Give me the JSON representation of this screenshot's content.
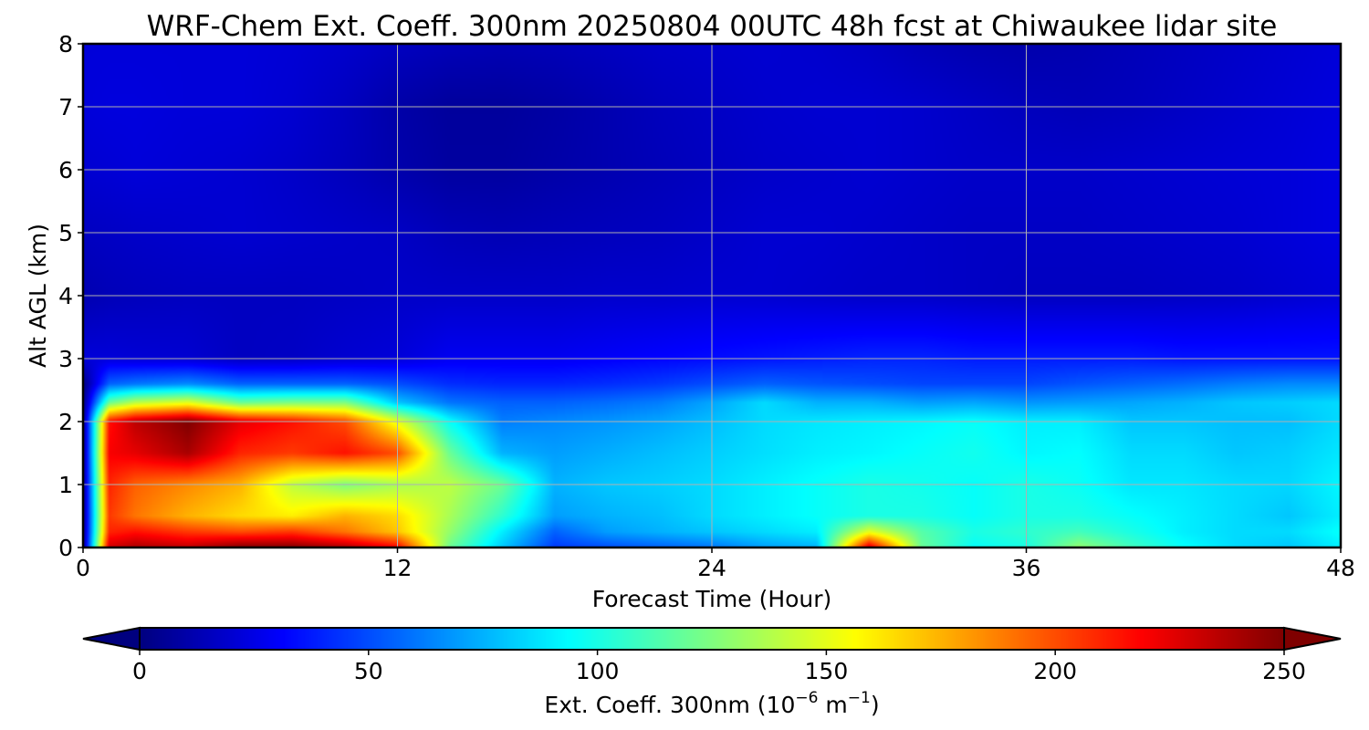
{
  "chart_data": {
    "type": "heatmap",
    "title": "WRF-Chem Ext. Coeff. 300nm  20250804 00UTC 48h fcst at Chiwaukee lidar site",
    "xlabel": "Forecast Time (Hour)",
    "ylabel": "Alt AGL (km)",
    "xlim": [
      0,
      48
    ],
    "ylim": [
      0,
      8
    ],
    "x_ticks": [
      "0",
      "12",
      "24",
      "36",
      "48"
    ],
    "y_ticks": [
      "0",
      "1",
      "2",
      "3",
      "4",
      "5",
      "6",
      "7",
      "8"
    ],
    "grid": true,
    "colormap": "jet",
    "colorbar": {
      "label_main": "Ext. Coeff. 300nm  (10",
      "label_exp1": "−6",
      "label_mid": " m",
      "label_exp2": "−1",
      "label_end": ")",
      "range": [
        0,
        250
      ],
      "extend": "both",
      "ticks": [
        "0",
        "50",
        "100",
        "150",
        "200",
        "250"
      ]
    },
    "x": [
      0,
      1,
      2,
      4,
      6,
      8,
      10,
      12,
      14,
      16,
      18,
      20,
      22,
      24,
      26,
      28,
      30,
      32,
      34,
      36,
      38,
      40,
      42,
      44,
      46,
      48
    ],
    "y": [
      0,
      0.25,
      0.5,
      1,
      1.5,
      2,
      2.3,
      2.6,
      3,
      4,
      5,
      6,
      7,
      8
    ],
    "z": [
      [
        0,
        230,
        240,
        235,
        250,
        250,
        240,
        220,
        120,
        80,
        45,
        50,
        55,
        60,
        70,
        75,
        230,
        120,
        95,
        100,
        130,
        110,
        95,
        85,
        80,
        90
      ],
      [
        0,
        210,
        215,
        205,
        200,
        205,
        190,
        170,
        130,
        90,
        55,
        70,
        75,
        80,
        85,
        90,
        150,
        115,
        100,
        105,
        110,
        100,
        90,
        85,
        85,
        95
      ],
      [
        0,
        205,
        190,
        175,
        165,
        160,
        175,
        165,
        135,
        105,
        70,
        75,
        78,
        85,
        90,
        95,
        100,
        100,
        95,
        100,
        100,
        95,
        90,
        85,
        80,
        90
      ],
      [
        0,
        210,
        195,
        185,
        175,
        140,
        125,
        135,
        140,
        120,
        75,
        80,
        82,
        85,
        90,
        95,
        100,
        98,
        95,
        100,
        96,
        88,
        88,
        85,
        84,
        92
      ],
      [
        0,
        220,
        225,
        240,
        210,
        205,
        215,
        200,
        120,
        75,
        70,
        74,
        78,
        82,
        86,
        90,
        92,
        95,
        98,
        92,
        94,
        85,
        85,
        80,
        82,
        88
      ],
      [
        0,
        215,
        235,
        250,
        225,
        215,
        200,
        150,
        95,
        62,
        65,
        68,
        72,
        78,
        85,
        88,
        90,
        92,
        95,
        90,
        90,
        80,
        80,
        78,
        78,
        85
      ],
      [
        0,
        120,
        140,
        150,
        120,
        125,
        125,
        80,
        60,
        55,
        55,
        58,
        62,
        72,
        85,
        75,
        75,
        70,
        72,
        68,
        70,
        72,
        75,
        80,
        82,
        85
      ],
      [
        0,
        55,
        60,
        65,
        55,
        55,
        55,
        50,
        42,
        40,
        40,
        42,
        45,
        50,
        55,
        52,
        50,
        48,
        48,
        48,
        52,
        55,
        58,
        62,
        65,
        65
      ],
      [
        22,
        22,
        21,
        20,
        16,
        17,
        20,
        22,
        28,
        28,
        28,
        30,
        32,
        34,
        36,
        38,
        40,
        40,
        38,
        38,
        38,
        38,
        36,
        36,
        36,
        36
      ],
      [
        12,
        14,
        15,
        16,
        16,
        16,
        17,
        18,
        18,
        18,
        18,
        19,
        19,
        20,
        20,
        19,
        18,
        18,
        17,
        16,
        16,
        16,
        17,
        18,
        20,
        22
      ],
      [
        16,
        17,
        18,
        19,
        20,
        19,
        18,
        17,
        14,
        13,
        14,
        15,
        16,
        18,
        20,
        20,
        19,
        18,
        17,
        17,
        17,
        18,
        19,
        20,
        22,
        24
      ],
      [
        20,
        21,
        22,
        21,
        20,
        18,
        15,
        11,
        8,
        8,
        10,
        12,
        14,
        16,
        18,
        19,
        20,
        19,
        18,
        18,
        18,
        19,
        20,
        21,
        22,
        24
      ],
      [
        22,
        23,
        23,
        22,
        22,
        20,
        16,
        10,
        7,
        7,
        9,
        12,
        15,
        17,
        19,
        20,
        20,
        19,
        17,
        15,
        14,
        15,
        17,
        19,
        21,
        23
      ],
      [
        22,
        22,
        22,
        22,
        22,
        21,
        19,
        16,
        14,
        13,
        14,
        16,
        18,
        19,
        20,
        19,
        17,
        14,
        12,
        11,
        12,
        14,
        16,
        18,
        20,
        22
      ]
    ]
  }
}
